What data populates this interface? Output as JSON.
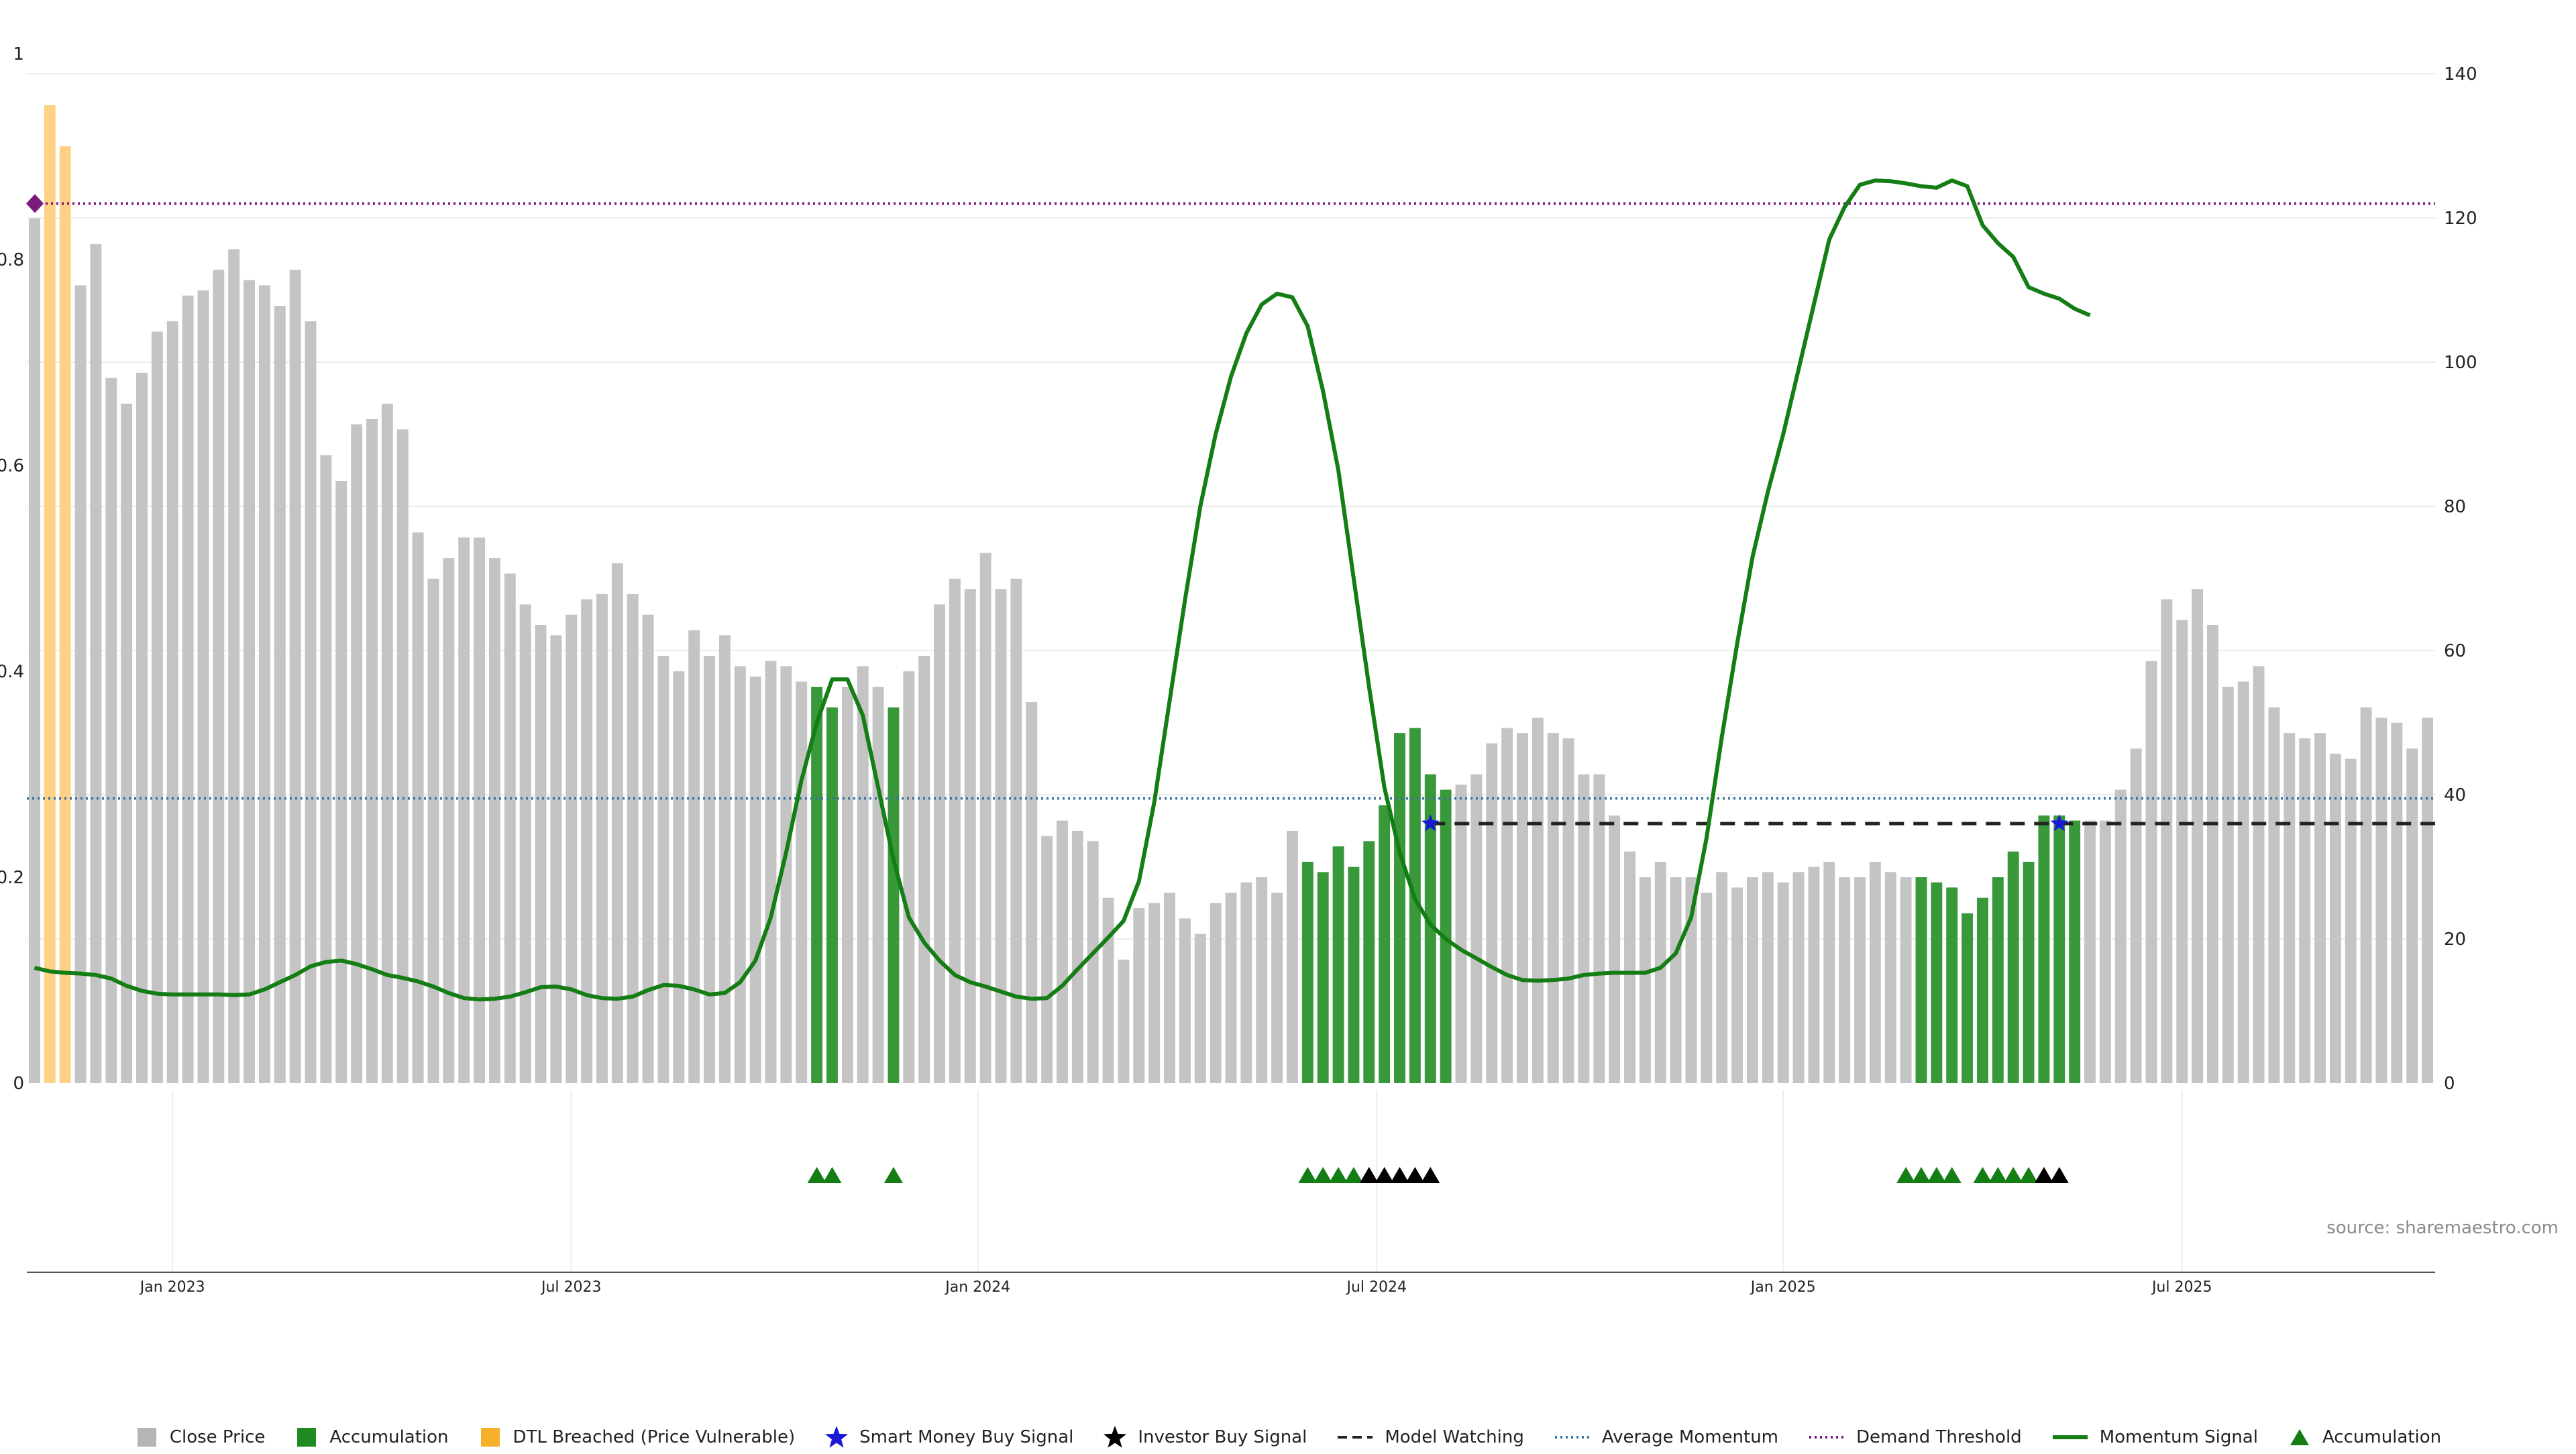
{
  "chart_data": {
    "type": "bar",
    "source": "source: sharemaestro.com",
    "left_axis": {
      "ticks": [
        "0",
        "0.2",
        "0.4",
        "0.6",
        "0.8",
        "1"
      ],
      "range": [
        0,
        1
      ]
    },
    "right_axis": {
      "ticks": [
        "0",
        "20",
        "40",
        "60",
        "80",
        "100",
        "120",
        "140"
      ],
      "range": [
        0,
        140
      ]
    },
    "date_ticks": [
      {
        "label": "Jan 2023",
        "index": 9
      },
      {
        "label": "Jul 2023",
        "index": 35
      },
      {
        "label": "Jan 2024",
        "index": 61.5
      },
      {
        "label": "Jul 2024",
        "index": 87.5
      },
      {
        "label": "Jan 2025",
        "index": 114
      },
      {
        "label": "Jul 2025",
        "index": 140
      }
    ],
    "colors": {
      "close": "#c4c4c4",
      "accumulation": "#38983a",
      "dtl": "#fdd286",
      "momentum": "#147d14",
      "average": "#3d74a0",
      "demand": "#7a1a7a",
      "watching": "#222222",
      "smart_money": "#1a1ad6",
      "investor": "#000000"
    },
    "bars": [
      0.84,
      0.95,
      0.91,
      0.775,
      0.815,
      0.685,
      0.66,
      0.69,
      0.73,
      0.74,
      0.765,
      0.77,
      0.79,
      0.81,
      0.78,
      0.775,
      0.755,
      0.79,
      0.74,
      0.61,
      0.585,
      0.64,
      0.645,
      0.66,
      0.635,
      0.535,
      0.49,
      0.51,
      0.53,
      0.53,
      0.51,
      0.495,
      0.465,
      0.445,
      0.435,
      0.455,
      0.47,
      0.475,
      0.505,
      0.475,
      0.455,
      0.415,
      0.4,
      0.44,
      0.415,
      0.435,
      0.405,
      0.395,
      0.41,
      0.405,
      0.39,
      0.385,
      0.365,
      0.385,
      0.405,
      0.385,
      0.365,
      0.4,
      0.415,
      0.465,
      0.49,
      0.48,
      0.515,
      0.48,
      0.49,
      0.37,
      0.24,
      0.255,
      0.245,
      0.235,
      0.18,
      0.12,
      0.17,
      0.175,
      0.185,
      0.16,
      0.145,
      0.175,
      0.185,
      0.195,
      0.2,
      0.185,
      0.245,
      0.215,
      0.205,
      0.23,
      0.21,
      0.235,
      0.27,
      0.34,
      0.345,
      0.3,
      0.285,
      0.29,
      0.3,
      0.33,
      0.345,
      0.34,
      0.355,
      0.34,
      0.335,
      0.3,
      0.3,
      0.26,
      0.225,
      0.2,
      0.215,
      0.2,
      0.2,
      0.185,
      0.205,
      0.19,
      0.2,
      0.205,
      0.195,
      0.205,
      0.21,
      0.215,
      0.2,
      0.2,
      0.215,
      0.205,
      0.2,
      0.2,
      0.195,
      0.19,
      0.165,
      0.18,
      0.2,
      0.225,
      0.215,
      0.26,
      0.26,
      0.255,
      0.255,
      0.255,
      0.285,
      0.325,
      0.41,
      0.47,
      0.45,
      0.48,
      0.445,
      0.385,
      0.39,
      0.405,
      0.365,
      0.34,
      0.335,
      0.34,
      0.32,
      0.315,
      0.365,
      0.355,
      0.35,
      0.325,
      0.355
    ],
    "accumulation_bars": [
      51,
      52,
      56,
      83,
      84,
      85,
      86,
      87,
      88,
      89,
      90,
      91,
      92,
      123,
      124,
      125,
      126,
      127,
      128,
      129,
      130,
      131,
      132,
      133
    ],
    "dtl_bars": [
      1,
      2
    ],
    "momentum": [
      16,
      15.5,
      15.3,
      15.2,
      15,
      14.5,
      13.5,
      12.8,
      12.4,
      12.3,
      12.3,
      12.3,
      12.3,
      12.2,
      12.3,
      13,
      14,
      15,
      16.2,
      16.8,
      17,
      16.5,
      15.8,
      15,
      14.6,
      14.1,
      13.4,
      12.5,
      11.8,
      11.6,
      11.7,
      12,
      12.6,
      13.3,
      13.4,
      13,
      12.2,
      11.8,
      11.7,
      12,
      12.9,
      13.6,
      13.5,
      13,
      12.3,
      12.5,
      14,
      17,
      23,
      32,
      42,
      50,
      56,
      56,
      51,
      41,
      31,
      23,
      19.5,
      17,
      15,
      14,
      13.4,
      12.7,
      12,
      11.7,
      11.8,
      13.5,
      15.8,
      18,
      20.2,
      22.5,
      28,
      39,
      53,
      67,
      80,
      90,
      98,
      104,
      108,
      109.5,
      109,
      105,
      96,
      85,
      70,
      55,
      41,
      32,
      25.5,
      22,
      20,
      18.5,
      17.3,
      16.1,
      15,
      14.3,
      14.2,
      14.3,
      14.5,
      15,
      15.2,
      15.3,
      15.3,
      15.3,
      16,
      18,
      23,
      34,
      48,
      61,
      73,
      82,
      90,
      99,
      108,
      117,
      121.5,
      124.6,
      125.2,
      125.1,
      124.8,
      124.4,
      124.2,
      125.2,
      124.4,
      119,
      116.5,
      114.6,
      110.4,
      109.5,
      108.8,
      107.4,
      106.5
    ],
    "momentum_start_index": 0,
    "average_momentum": 39.5,
    "demand_threshold": 122,
    "model_watching": 36,
    "model_watching_start": 91,
    "smart_money_points": [
      {
        "index": 91,
        "value": 36
      },
      {
        "index": 132,
        "value": 36
      }
    ],
    "signal_markers": [
      {
        "index": 51,
        "type": "accumulation"
      },
      {
        "index": 52,
        "type": "accumulation"
      },
      {
        "index": 56,
        "type": "accumulation"
      },
      {
        "index": 83,
        "type": "accumulation"
      },
      {
        "index": 84,
        "type": "accumulation"
      },
      {
        "index": 85,
        "type": "accumulation"
      },
      {
        "index": 86,
        "type": "accumulation"
      },
      {
        "index": 87,
        "type": "investor"
      },
      {
        "index": 88,
        "type": "investor"
      },
      {
        "index": 89,
        "type": "investor"
      },
      {
        "index": 90,
        "type": "investor"
      },
      {
        "index": 91,
        "type": "investor"
      },
      {
        "index": 122,
        "type": "accumulation"
      },
      {
        "index": 123,
        "type": "accumulation"
      },
      {
        "index": 124,
        "type": "accumulation"
      },
      {
        "index": 125,
        "type": "accumulation"
      },
      {
        "index": 127,
        "type": "accumulation"
      },
      {
        "index": 128,
        "type": "accumulation"
      },
      {
        "index": 129,
        "type": "accumulation"
      },
      {
        "index": 130,
        "type": "accumulation"
      },
      {
        "index": 131,
        "type": "investor"
      },
      {
        "index": 132,
        "type": "investor"
      }
    ],
    "legend": [
      {
        "label": "Close Price",
        "kind": "square",
        "color": "#b5b5b5"
      },
      {
        "label": "Accumulation",
        "kind": "square",
        "color": "#1f8a1f"
      },
      {
        "label": "DTL Breached (Price Vulnerable)",
        "kind": "square",
        "color": "#f7b02a"
      },
      {
        "label": "Smart Money Buy Signal",
        "kind": "star",
        "color": "#1a1ad6"
      },
      {
        "label": "Investor Buy Signal",
        "kind": "star",
        "color": "#000000"
      },
      {
        "label": "Model Watching",
        "kind": "dash",
        "color": "#222222"
      },
      {
        "label": "Average Momentum",
        "kind": "dot",
        "color": "#3d74a0"
      },
      {
        "label": "Demand Threshold",
        "kind": "dot",
        "color": "#7a1a7a"
      },
      {
        "label": "Momentum Signal",
        "kind": "line",
        "color": "#147d14"
      },
      {
        "label": "Accumulation",
        "kind": "triangle",
        "color": "#147d14"
      }
    ]
  }
}
